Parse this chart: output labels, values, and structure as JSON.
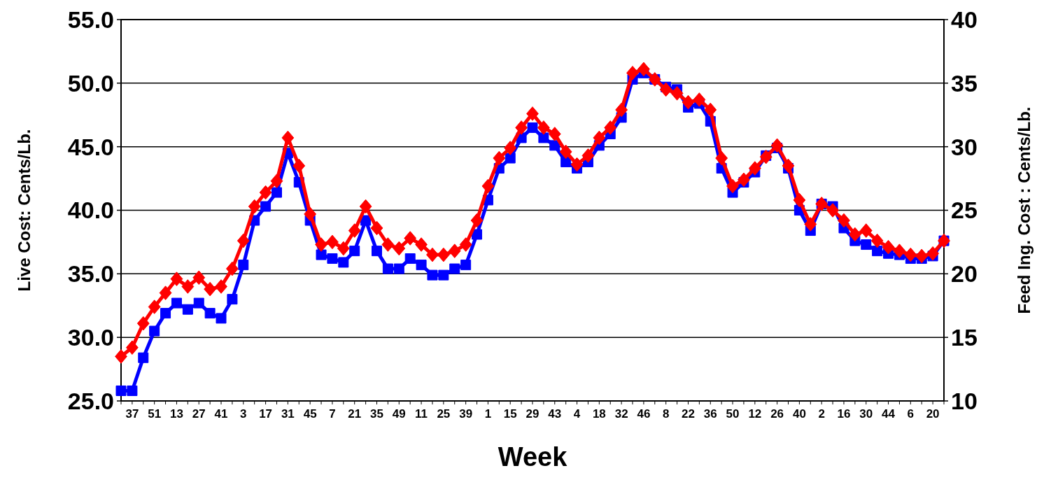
{
  "chart_data": {
    "type": "line",
    "xlabel": "Week",
    "ylabel": "Live Cost: Cents/Lb.",
    "y2label": "Feed Ing. Cost : Cents/Lb.",
    "categories": [
      null,
      "37",
      null,
      "51",
      null,
      "13",
      null,
      "27",
      null,
      "41",
      null,
      "3",
      null,
      "17",
      null,
      "31",
      null,
      "45",
      null,
      "7",
      null,
      "21",
      null,
      "35",
      null,
      "49",
      null,
      "11",
      null,
      "25",
      null,
      "39",
      null,
      "1",
      null,
      "15",
      null,
      "29",
      null,
      "43",
      null,
      "4",
      null,
      "18",
      null,
      "32",
      null,
      "46",
      null,
      "8",
      null,
      "22",
      null,
      "36",
      null,
      "50",
      null,
      "12",
      null,
      "26",
      null,
      "40",
      null,
      "2",
      null,
      "16",
      null,
      "30",
      null,
      "44",
      null,
      "6",
      null,
      "20",
      null
    ],
    "series": [
      {
        "color": "#0000ff",
        "marker": "square",
        "values": [
          25.8,
          25.8,
          28.4,
          30.5,
          31.9,
          32.7,
          32.2,
          32.7,
          31.9,
          31.5,
          33.0,
          35.7,
          39.2,
          40.3,
          41.4,
          44.5,
          42.2,
          39.2,
          36.5,
          36.2,
          35.9,
          36.8,
          39.2,
          36.8,
          35.4,
          35.4,
          36.2,
          35.7,
          34.9,
          34.9,
          35.4,
          35.7,
          38.1,
          40.8,
          43.3,
          44.1,
          45.7,
          46.5,
          45.7,
          45.1,
          43.8,
          43.3,
          43.8,
          45.1,
          46.0,
          47.3,
          50.3,
          50.8,
          50.3,
          49.7,
          49.5,
          48.1,
          48.4,
          47.0,
          43.3,
          41.4,
          42.2,
          43.0,
          44.3,
          44.9,
          43.3,
          40.0,
          38.4,
          40.5,
          40.3,
          38.6,
          37.6,
          37.3,
          36.8,
          36.6,
          36.5,
          36.2,
          36.2,
          36.4,
          37.6
        ]
      },
      {
        "color": "#ff0000",
        "marker": "diamond",
        "axis": "y2",
        "values": [
          13.5,
          14.2,
          16.1,
          17.4,
          18.5,
          19.6,
          19.0,
          19.7,
          18.8,
          19.0,
          20.4,
          22.6,
          25.3,
          26.4,
          27.3,
          30.7,
          28.5,
          24.7,
          22.3,
          22.5,
          22.0,
          23.4,
          25.3,
          23.6,
          22.3,
          22.0,
          22.8,
          22.3,
          21.5,
          21.5,
          21.8,
          22.3,
          24.2,
          26.9,
          29.1,
          29.9,
          31.5,
          32.6,
          31.5,
          31.0,
          29.6,
          28.6,
          29.3,
          30.7,
          31.5,
          32.9,
          35.8,
          36.1,
          35.3,
          34.5,
          34.2,
          33.5,
          33.7,
          32.9,
          29.1,
          26.9,
          27.4,
          28.3,
          29.2,
          30.1,
          28.5,
          25.8,
          23.9,
          25.5,
          25.0,
          24.2,
          23.1,
          23.4,
          22.6,
          22.1,
          21.8,
          21.5,
          21.4,
          21.6,
          22.6
        ]
      }
    ],
    "ylim": [
      25,
      55
    ],
    "yticks": [
      {
        "value": 25,
        "label": "25.0"
      },
      {
        "value": 30,
        "label": "30.0"
      },
      {
        "value": 35,
        "label": "35.0"
      },
      {
        "value": 40,
        "label": "40.0"
      },
      {
        "value": 45,
        "label": "45.0"
      },
      {
        "value": 50,
        "label": "50.0"
      },
      {
        "value": 55,
        "label": "55.0"
      }
    ],
    "y2lim": [
      10,
      40
    ],
    "y2ticks": [
      10,
      15,
      20,
      25,
      30,
      35,
      40
    ],
    "grid": "y"
  }
}
